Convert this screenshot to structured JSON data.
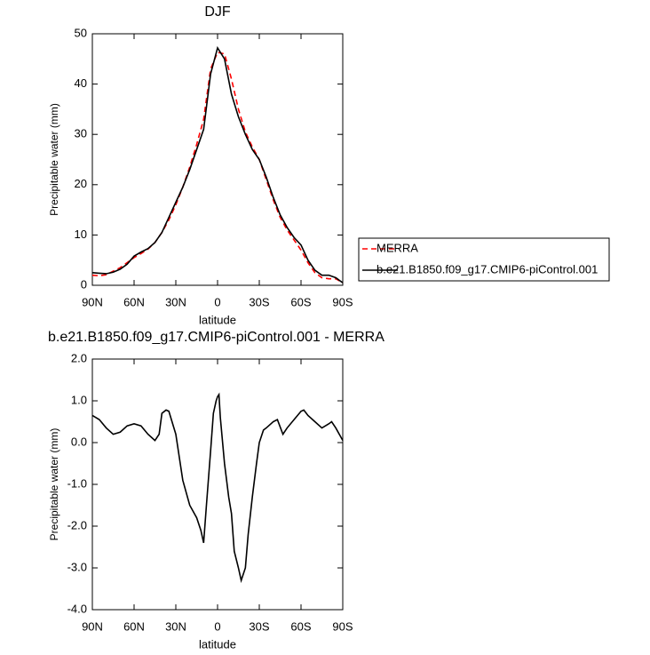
{
  "chart_data": [
    {
      "type": "line",
      "title": "DJF",
      "xlabel": "latitude",
      "ylabel": "Precipitable water (mm)",
      "x": [
        90,
        85,
        80,
        75,
        70,
        65,
        60,
        55,
        50,
        45,
        40,
        35,
        30,
        25,
        20,
        15,
        10,
        5,
        0,
        -5,
        -10,
        -15,
        -20,
        -25,
        -30,
        -35,
        -40,
        -45,
        -50,
        -55,
        -60,
        -65,
        -70,
        -75,
        -80,
        -85,
        -90
      ],
      "series": [
        {
          "name": "MERRA",
          "color": "#ff0000",
          "dashed": true,
          "values": [
            2,
            1.9,
            2.1,
            2.8,
            3.5,
            4.5,
            5.5,
            6.3,
            7.2,
            8.5,
            10.5,
            13,
            16,
            19.5,
            23.5,
            28,
            33,
            43,
            46.3,
            46,
            41,
            35,
            30.5,
            27.5,
            25,
            21,
            17,
            13.5,
            11,
            9,
            7,
            4.5,
            2.5,
            1.5,
            1.3,
            1.3,
            0.5
          ]
        },
        {
          "name": "b.e21.B1850.f09_g17.CMIP6-piControl.001",
          "color": "#000000",
          "dashed": false,
          "values": [
            2.5,
            2.4,
            2.3,
            2.6,
            3.2,
            4.2,
            5.8,
            6.6,
            7.3,
            8.5,
            10.5,
            13.5,
            16.5,
            19.5,
            23,
            27,
            31,
            42,
            47.2,
            45,
            38,
            33.5,
            30,
            27,
            25,
            21.5,
            17.5,
            14,
            11.5,
            9.5,
            8,
            5,
            3,
            2,
            2,
            1.5,
            0.5
          ]
        }
      ],
      "xlim": [
        90,
        -90
      ],
      "xticks": [
        {
          "value": 90,
          "label": "90N"
        },
        {
          "value": 60,
          "label": "60N"
        },
        {
          "value": 30,
          "label": "30N"
        },
        0,
        {
          "value": -30,
          "label": "30S"
        },
        {
          "value": -60,
          "label": "60S"
        },
        {
          "value": -90,
          "label": "90S"
        }
      ],
      "ylim": [
        0,
        50
      ],
      "yticks": [
        0,
        10,
        20,
        30,
        40,
        50
      ],
      "legend": "right"
    },
    {
      "type": "line",
      "title": "b.e21.B1850.f09_g17.CMIP6-piControl.001 - MERRA",
      "xlabel": "latitude",
      "ylabel": "Precipitable water (mm)",
      "x": [
        90,
        85,
        80,
        75,
        70,
        65,
        60,
        55,
        50,
        45,
        42,
        40,
        37,
        35,
        30,
        25,
        20,
        15,
        12,
        10,
        8,
        5,
        3,
        1,
        0,
        -1,
        -2,
        -5,
        -8,
        -10,
        -12,
        -15,
        -17,
        -20,
        -22,
        -25,
        -28,
        -30,
        -33,
        -35,
        -40,
        -43,
        -47,
        -50,
        -55,
        -60,
        -62,
        -65,
        -70,
        -75,
        -80,
        -82,
        -85,
        -90
      ],
      "values": [
        0.65,
        0.55,
        0.35,
        0.2,
        0.25,
        0.4,
        0.45,
        0.4,
        0.2,
        0.05,
        0.2,
        0.7,
        0.78,
        0.75,
        0.2,
        -0.9,
        -1.5,
        -1.8,
        -2.1,
        -2.4,
        -1.5,
        -0.2,
        0.7,
        1.0,
        1.1,
        1.15,
        0.6,
        -0.5,
        -1.3,
        -1.7,
        -2.6,
        -3.0,
        -3.3,
        -3.0,
        -2.2,
        -1.3,
        -0.5,
        0.0,
        0.3,
        0.35,
        0.5,
        0.55,
        0.2,
        0.35,
        0.55,
        0.75,
        0.78,
        0.65,
        0.5,
        0.35,
        0.45,
        0.5,
        0.35,
        0.05
      ],
      "color": "#000000",
      "xlim": [
        90,
        -90
      ],
      "xticks": [
        {
          "value": 90,
          "label": "90N"
        },
        {
          "value": 60,
          "label": "60N"
        },
        {
          "value": 30,
          "label": "30N"
        },
        0,
        {
          "value": -30,
          "label": "30S"
        },
        {
          "value": -60,
          "label": "60S"
        },
        {
          "value": -90,
          "label": "90S"
        }
      ],
      "ylim": [
        -4,
        2
      ],
      "yticks": [
        {
          "value": -4,
          "label": "-4.0"
        },
        {
          "value": -3,
          "label": "-3.0"
        },
        {
          "value": -2,
          "label": "-2.0"
        },
        {
          "value": -1,
          "label": "-1.0"
        },
        {
          "value": 0,
          "label": "0.0"
        },
        {
          "value": 1,
          "label": "1.0"
        },
        {
          "value": 2,
          "label": "2.0"
        }
      ]
    }
  ]
}
